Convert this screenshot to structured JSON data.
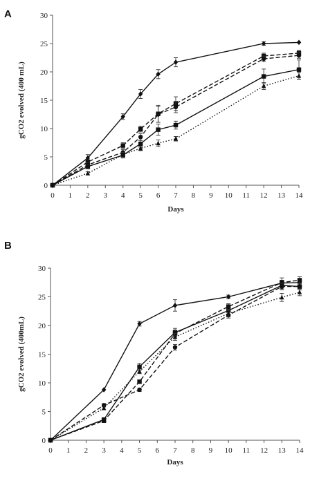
{
  "chart_data": [
    {
      "panel": "A",
      "type": "line",
      "xlabel": "Days",
      "ylabel": "gCO2 evolved (400 mL)",
      "xlim": [
        0,
        14
      ],
      "ylim": [
        0,
        30
      ],
      "xticks": [
        0,
        1,
        2,
        3,
        4,
        5,
        6,
        7,
        8,
        9,
        10,
        11,
        12,
        13,
        14
      ],
      "yticks": [
        0,
        5,
        10,
        15,
        20,
        25,
        30
      ],
      "grid": false,
      "series": [
        {
          "marker": "diamond",
          "dash": "solid",
          "color": "#111111",
          "x": [
            0,
            2,
            4,
            5,
            6,
            7,
            12,
            14
          ],
          "y": [
            0,
            4.8,
            12.1,
            16.1,
            19.6,
            21.7,
            25.0,
            25.2
          ],
          "err": [
            0.2,
            0.6,
            0.5,
            0.8,
            0.8,
            0.8,
            0.3,
            0.2
          ]
        },
        {
          "marker": "square",
          "dash": "dashed",
          "color": "#111111",
          "x": [
            0,
            2,
            4,
            5,
            6,
            7,
            12,
            14
          ],
          "y": [
            0,
            4.1,
            7.0,
            9.9,
            12.6,
            14.4,
            22.8,
            23.3
          ],
          "err": [
            0.2,
            0.4,
            0.5,
            0.5,
            1.5,
            1.2,
            0.5,
            0.5
          ]
        },
        {
          "marker": "circle",
          "dash": "dashed",
          "color": "#111111",
          "x": [
            0,
            2,
            4,
            5,
            6,
            7,
            12,
            14
          ],
          "y": [
            0,
            3.6,
            5.8,
            8.5,
            12.5,
            13.8,
            22.3,
            22.9
          ],
          "err": [
            0.2,
            0.4,
            0.5,
            0.6,
            1.4,
            1.0,
            0.5,
            0.5
          ]
        },
        {
          "marker": "square",
          "dash": "solid",
          "color": "#111111",
          "x": [
            0,
            2,
            4,
            5,
            6,
            7,
            12,
            14
          ],
          "y": [
            0,
            3.3,
            5.3,
            7.3,
            9.8,
            10.6,
            19.2,
            20.4
          ],
          "err": [
            0.2,
            0.4,
            0.5,
            0.6,
            1.0,
            0.7,
            1.3,
            1.7
          ]
        },
        {
          "marker": "triangle",
          "dash": "dotted",
          "color": "#111111",
          "x": [
            0,
            2,
            4,
            5,
            6,
            7,
            12,
            14
          ],
          "y": [
            0,
            2.1,
            5.4,
            6.5,
            7.4,
            8.2,
            17.5,
            19.3
          ],
          "err": [
            0.2,
            0.3,
            0.4,
            0.4,
            0.6,
            0.4,
            0.6,
            0.6
          ]
        }
      ]
    },
    {
      "panel": "B",
      "type": "line",
      "xlabel": "Days",
      "ylabel": "gCO2 evolved (400mL)",
      "xlim": [
        0,
        14
      ],
      "ylim": [
        0,
        30
      ],
      "xticks": [
        0,
        1,
        2,
        3,
        4,
        5,
        6,
        7,
        8,
        9,
        10,
        11,
        12,
        13,
        14
      ],
      "yticks": [
        0,
        5,
        10,
        15,
        20,
        25,
        30
      ],
      "grid": false,
      "series": [
        {
          "marker": "diamond",
          "dash": "solid",
          "color": "#111111",
          "x": [
            0,
            3,
            5,
            7,
            10,
            13,
            14
          ],
          "y": [
            0,
            8.8,
            20.3,
            23.5,
            25.0,
            27.4,
            27.5
          ],
          "err": [
            0.2,
            0.2,
            0.4,
            1.0,
            0.3,
            0.5,
            0.5
          ]
        },
        {
          "marker": "square",
          "dash": "solid",
          "color": "#111111",
          "x": [
            0,
            3,
            5,
            7,
            10,
            13,
            14
          ],
          "y": [
            0,
            3.6,
            12.8,
            18.8,
            22.6,
            27.0,
            26.8
          ],
          "err": [
            0.2,
            0.3,
            0.6,
            0.7,
            0.6,
            0.6,
            0.6
          ]
        },
        {
          "marker": "square",
          "dash": "dashed",
          "color": "#111111",
          "x": [
            0,
            3,
            5,
            7,
            10,
            13,
            14
          ],
          "y": [
            0,
            3.4,
            10.2,
            18.6,
            23.3,
            27.5,
            27.9
          ],
          "err": [
            0.2,
            0.3,
            0.3,
            0.6,
            0.5,
            0.8,
            0.6
          ]
        },
        {
          "marker": "circle",
          "dash": "dashed",
          "color": "#111111",
          "x": [
            0,
            3,
            5,
            7,
            10,
            13,
            14
          ],
          "y": [
            0,
            6.1,
            8.8,
            16.2,
            21.8,
            26.8,
            26.8
          ],
          "err": [
            0.2,
            0.3,
            0.3,
            0.5,
            0.5,
            0.6,
            0.6
          ]
        },
        {
          "marker": "triangle",
          "dash": "dotted",
          "color": "#111111",
          "x": [
            0,
            3,
            5,
            7,
            10,
            13,
            14
          ],
          "y": [
            0,
            5.6,
            12.0,
            18.0,
            22.1,
            24.9,
            25.8
          ],
          "err": [
            0.2,
            0.3,
            0.4,
            0.6,
            0.6,
            0.7,
            0.6
          ]
        }
      ]
    }
  ]
}
